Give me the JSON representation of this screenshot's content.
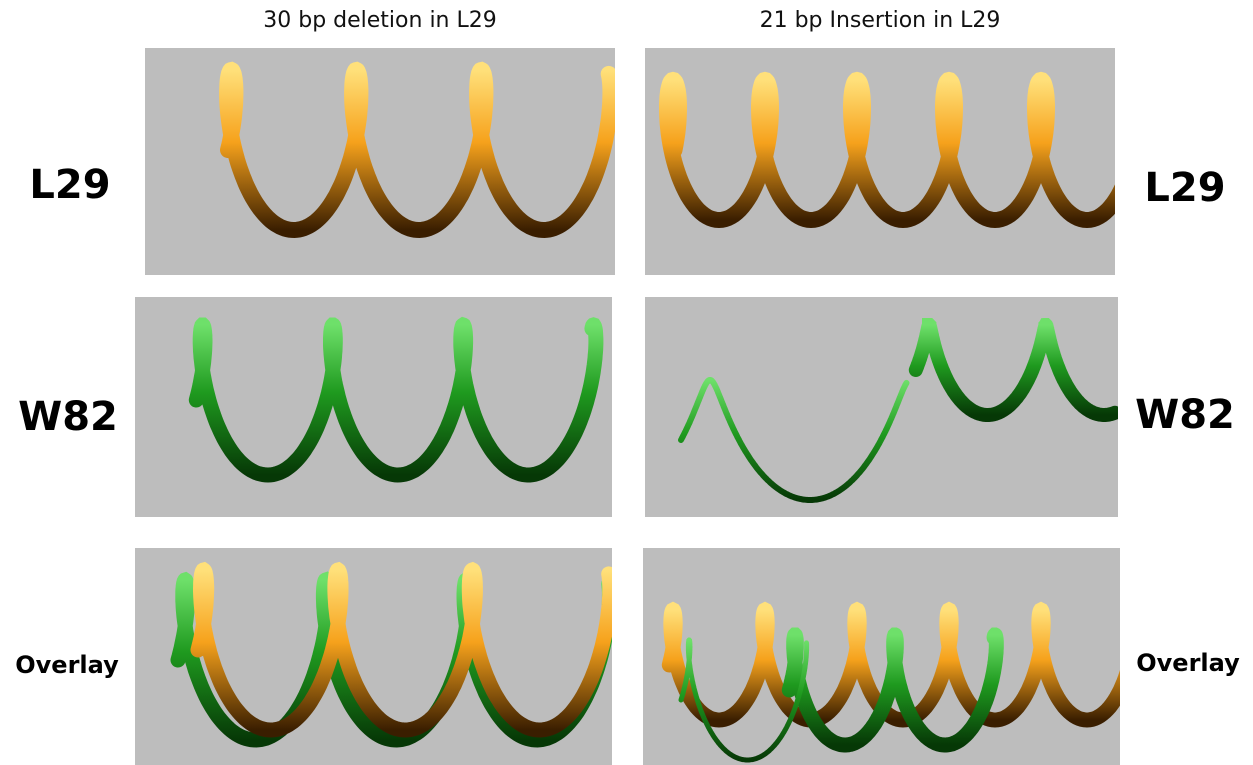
{
  "columns": [
    "30 bp deletion in L29",
    "21 bp Insertion in L29"
  ],
  "rows": [
    {
      "label_left": "L29",
      "label_right": "L29"
    },
    {
      "label_left": "W82",
      "label_right": "W82"
    },
    {
      "label_left": "Overlay",
      "label_right": "Overlay"
    }
  ]
}
